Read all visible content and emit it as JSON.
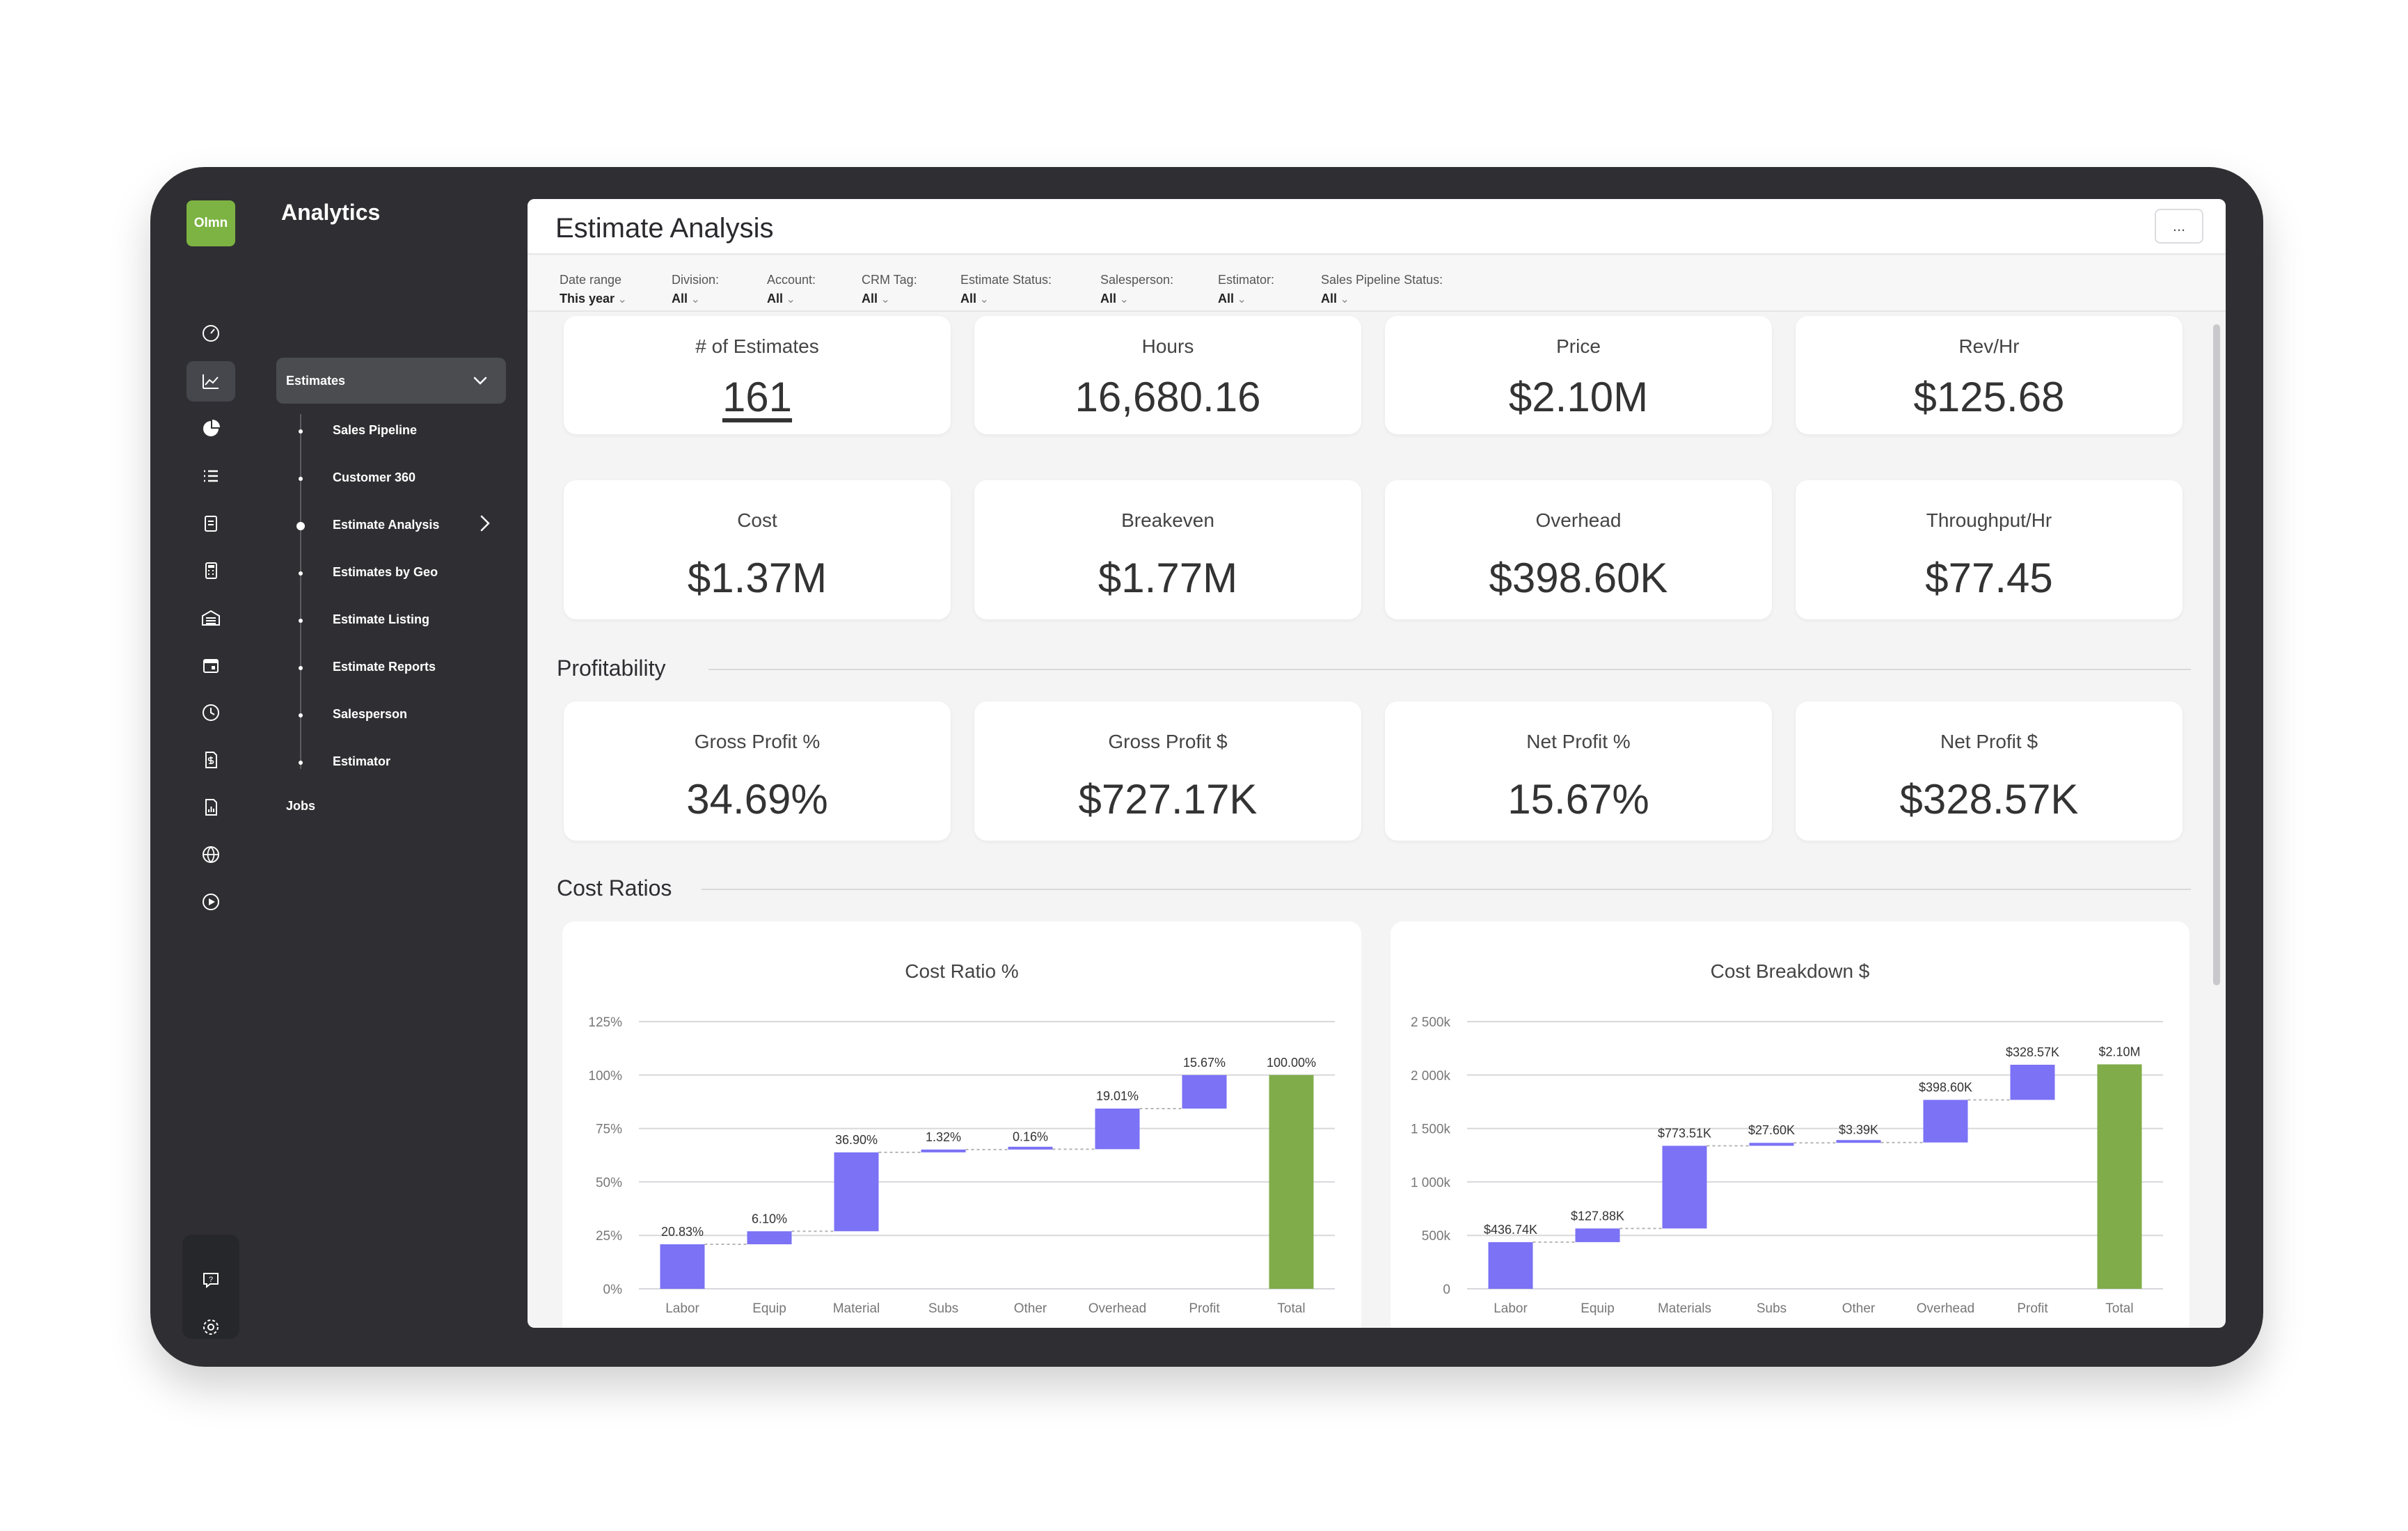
{
  "colors": {
    "accent": "#7b72f5",
    "total": "#80ac4a",
    "brand": "#7cb342",
    "device": "#2f2f33"
  },
  "logo": {
    "text": "Olmn"
  },
  "rail_icons": [
    "dashboard-icon",
    "line-chart-icon",
    "pie-chart-icon",
    "list-icon",
    "clipboard-icon",
    "calculator-icon",
    "warehouse-icon",
    "calendar-icon",
    "clock-icon",
    "document-dollar-icon",
    "report-icon",
    "globe-icon",
    "play-icon"
  ],
  "rail_bottom_icons": [
    "help-icon",
    "settings-icon"
  ],
  "nav": {
    "title": "Analytics",
    "group_label": "Estimates",
    "items": [
      "Sales Pipeline",
      "Customer 360",
      "Estimate Analysis",
      "Estimates by Geo",
      "Estimate Listing",
      "Estimate Reports",
      "Salesperson",
      "Estimator"
    ],
    "jobs_label": "Jobs"
  },
  "page": {
    "title": "Estimate Analysis",
    "more_label": "..."
  },
  "filters": [
    {
      "label": "Date range",
      "value": "This year"
    },
    {
      "label": "Division:",
      "value": "All"
    },
    {
      "label": "Account:",
      "value": "All"
    },
    {
      "label": "CRM Tag:",
      "value": "All"
    },
    {
      "label": "Estimate Status:",
      "value": "All"
    },
    {
      "label": "Salesperson:",
      "value": "All"
    },
    {
      "label": "Estimator:",
      "value": "All"
    },
    {
      "label": "Sales Pipeline Status:",
      "value": "All"
    }
  ],
  "kpis": [
    {
      "label": "# of Estimates",
      "value": "161"
    },
    {
      "label": "Hours",
      "value": "16,680.16"
    },
    {
      "label": "Price",
      "value": "$2.10M"
    },
    {
      "label": "Rev/Hr",
      "value": "$125.68"
    },
    {
      "label": "Cost",
      "value": "$1.37M"
    },
    {
      "label": "Breakeven",
      "value": "$1.77M"
    },
    {
      "label": "Overhead",
      "value": "$398.60K"
    },
    {
      "label": "Throughput/Hr",
      "value": "$77.45"
    }
  ],
  "profitability": {
    "title": "Profitability",
    "cards": [
      {
        "label": "Gross Profit %",
        "value": "34.69%"
      },
      {
        "label": "Gross Profit $",
        "value": "$727.17K"
      },
      {
        "label": "Net Profit %",
        "value": "15.67%"
      },
      {
        "label": "Net Profit $",
        "value": "$328.57K"
      }
    ]
  },
  "cost_ratios": {
    "title": "Cost Ratios"
  },
  "chart_data": [
    {
      "type": "bar",
      "subtype": "waterfall",
      "title": "Cost Ratio %",
      "categories": [
        "Labor",
        "Equip",
        "Material",
        "Subs",
        "Other",
        "Overhead",
        "Profit",
        "Total"
      ],
      "values": [
        20.83,
        6.1,
        36.9,
        1.32,
        0.16,
        19.01,
        15.67,
        100.0
      ],
      "data_labels": [
        "20.83%",
        "6.10%",
        "36.90%",
        "1.32%",
        "0.16%",
        "19.01%",
        "15.67%",
        "100.00%"
      ],
      "yticks": [
        0,
        25,
        50,
        75,
        100,
        125
      ],
      "ytick_labels": [
        "0%",
        "25%",
        "50%",
        "75%",
        "100%",
        "125%"
      ],
      "ylim": [
        0,
        125
      ],
      "grid": true
    },
    {
      "type": "bar",
      "subtype": "waterfall",
      "title": "Cost Breakdown $",
      "categories": [
        "Labor",
        "Equip",
        "Materials",
        "Subs",
        "Other",
        "Overhead",
        "Profit",
        "Total"
      ],
      "values": [
        436.74,
        127.88,
        773.51,
        27.6,
        3.39,
        398.6,
        328.57,
        2100
      ],
      "data_labels": [
        "$436.74K",
        "$127.88K",
        "$773.51K",
        "$27.60K",
        "$3.39K",
        "$398.60K",
        "$328.57K",
        "$2.10M"
      ],
      "yticks": [
        0,
        500,
        1000,
        1500,
        2000,
        2500
      ],
      "ytick_labels": [
        "0",
        "500k",
        "1 000k",
        "1 500k",
        "2 000k",
        "2 500k"
      ],
      "ylim": [
        0,
        2500
      ],
      "grid": true
    }
  ]
}
